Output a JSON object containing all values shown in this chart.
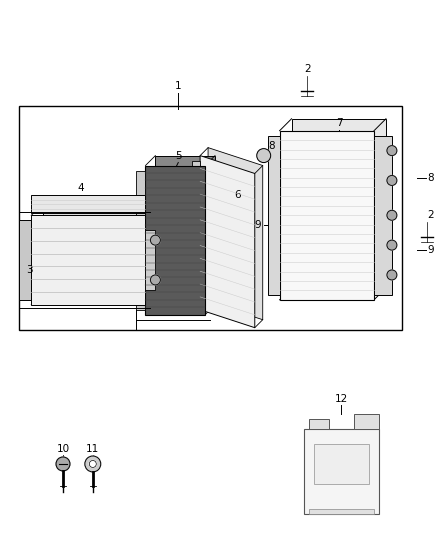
{
  "bg_color": "#ffffff",
  "line_color": "#000000",
  "fig_width": 4.38,
  "fig_height": 5.33,
  "dpi": 100,
  "font_size_label": 7.5
}
